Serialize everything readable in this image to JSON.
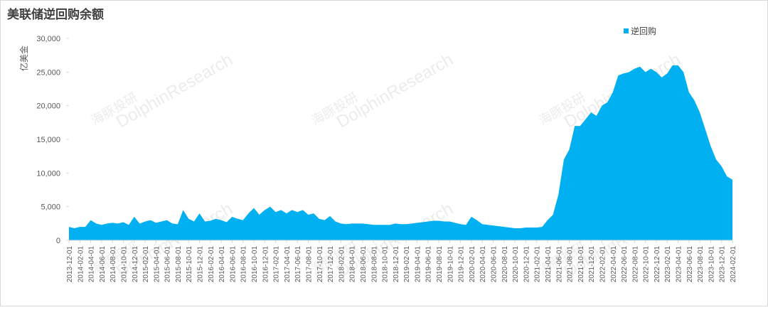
{
  "chart_data": {
    "type": "area",
    "title": "美联储逆回购余额",
    "y_label": "亿美金",
    "watermark": [
      "海豚投研",
      "DolphinResearch"
    ],
    "categories": [
      "2013-12-01",
      null,
      "2014-02-01",
      null,
      "2014-04-01",
      null,
      "2014-06-01",
      null,
      "2014-08-01",
      null,
      "2014-10-01",
      null,
      "2014-12-01",
      null,
      "2015-02-01",
      null,
      "2015-04-01",
      null,
      "2015-06-01",
      null,
      "2015-08-01",
      null,
      "2015-10-01",
      null,
      "2015-12-01",
      null,
      "2016-02-01",
      null,
      "2016-04-01",
      null,
      "2016-06-01",
      null,
      "2016-08-01",
      null,
      "2016-10-01",
      null,
      "2016-12-01",
      null,
      "2017-02-01",
      null,
      "2017-04-01",
      null,
      "2017-06-01",
      null,
      "2017-08-01",
      null,
      "2017-10-01",
      null,
      "2017-12-01",
      null,
      "2018-02-01",
      null,
      "2018-04-01",
      null,
      "2018-06-01",
      null,
      "2018-08-01",
      null,
      "2018-10-01",
      null,
      "2018-12-01",
      null,
      "2019-02-01",
      null,
      "2019-04-01",
      null,
      "2019-06-01",
      null,
      "2019-08-01",
      null,
      "2019-10-01",
      null,
      "2019-12-01",
      null,
      "2020-02-01",
      null,
      "2020-04-01",
      null,
      "2020-06-01",
      null,
      "2020-08-01",
      null,
      "2020-10-01",
      null,
      "2020-12-01",
      null,
      "2021-02-01",
      null,
      "2021-04-01",
      null,
      "2021-06-01",
      null,
      "2021-08-01",
      null,
      "2021-10-01",
      null,
      "2021-12-01",
      null,
      "2022-02-01",
      null,
      "2022-04-01",
      null,
      "2022-06-01",
      null,
      "2022-08-01",
      null,
      "2022-10-01",
      null,
      "2022-12-01",
      null,
      "2023-02-01",
      null,
      "2023-04-01",
      null,
      "2023-06-01",
      null,
      "2023-08-01",
      null,
      "2023-10-01",
      null,
      "2023-12-01",
      null,
      "2024-02-01"
    ],
    "series": [
      {
        "name": "逆回购",
        "color": "#00b0f0",
        "values": [
          2000,
          1800,
          2000,
          2000,
          3000,
          2500,
          2300,
          2500,
          2600,
          2500,
          2700,
          2300,
          3500,
          2500,
          2800,
          3000,
          2600,
          2800,
          3000,
          2500,
          2400,
          4500,
          3200,
          2800,
          4000,
          2800,
          2900,
          3200,
          3000,
          2700,
          3500,
          3200,
          3000,
          4000,
          4800,
          3800,
          4500,
          5000,
          4200,
          4500,
          4000,
          4500,
          4200,
          4500,
          3800,
          4000,
          3200,
          3000,
          3600,
          2800,
          2500,
          2400,
          2500,
          2500,
          2500,
          2400,
          2300,
          2300,
          2300,
          2300,
          2500,
          2400,
          2400,
          2500,
          2600,
          2700,
          2800,
          2900,
          2900,
          2800,
          2800,
          2600,
          2400,
          2300,
          3500,
          3000,
          2400,
          2300,
          2200,
          2100,
          2000,
          1900,
          1800,
          1800,
          1900,
          1900,
          1900,
          2000,
          3000,
          3800,
          6800,
          12000,
          13500,
          17000,
          17000,
          18000,
          19000,
          18500,
          20000,
          20500,
          22000,
          24500,
          24800,
          25000,
          25500,
          25800,
          25000,
          25500,
          25000,
          24200,
          24800,
          26000,
          26000,
          25000,
          22000,
          20800,
          19000,
          16500,
          14000,
          12000,
          11000,
          9500,
          9000
        ]
      }
    ],
    "ylim": [
      0,
      30000
    ],
    "yticks": [
      0,
      {
        "value": 5000,
        "label": "5,000"
      },
      {
        "value": 10000,
        "label": "10,000"
      },
      {
        "value": 15000,
        "label": "15,000"
      },
      {
        "value": 20000,
        "label": "20,000"
      },
      {
        "value": 25000,
        "label": "25,000"
      },
      {
        "value": 30000,
        "label": "30,000"
      }
    ],
    "legend": "top-right"
  }
}
